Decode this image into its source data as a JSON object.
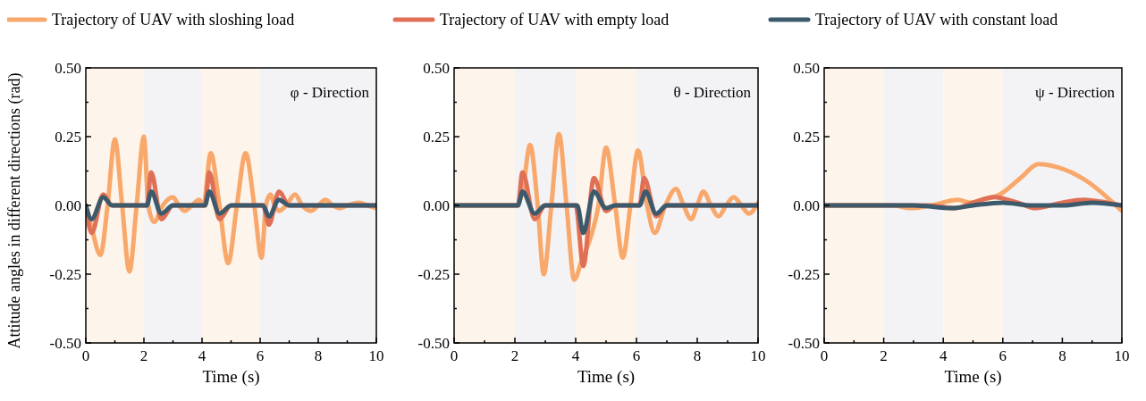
{
  "chart_data": [
    {
      "type": "line",
      "xlabel": "Time (s)",
      "ylabel": "Attitude angles in different directions (rad)",
      "annotations": [
        "φ - Direction"
      ],
      "legend": "top",
      "xlim": [
        0,
        10
      ],
      "xticks": [
        0,
        2,
        4,
        6,
        8,
        10
      ],
      "ylim": [
        -0.5,
        0.5
      ],
      "yticks": [
        {
          "value": -0.5,
          "label": "-0.50"
        },
        {
          "value": -0.25,
          "label": "-0.25"
        },
        {
          "value": 0,
          "label": "0.00"
        },
        {
          "value": 0.25,
          "label": "0.25"
        },
        {
          "value": 0.5,
          "label": "0.50"
        }
      ],
      "bands": [
        {
          "axis": "x",
          "from": 0,
          "to": 2,
          "color": "#fdf5eb"
        },
        {
          "axis": "x",
          "from": 2,
          "to": 4,
          "color": "#f3f3f6"
        },
        {
          "axis": "x",
          "from": 4,
          "to": 6,
          "color": "#fdf5eb"
        },
        {
          "axis": "x",
          "from": 6,
          "to": 10,
          "color": "#f3f3f6"
        }
      ],
      "series": [
        {
          "name": "Trajectory of UAV with sloshing load",
          "color": "#f9a86c",
          "x": [
            0,
            0.2,
            0.5,
            0.75,
            1.0,
            1.25,
            1.5,
            1.75,
            2.0,
            2.15,
            2.35,
            2.65,
            3.0,
            3.2,
            3.4,
            3.65,
            3.9,
            4.05,
            4.3,
            4.6,
            4.9,
            5.2,
            5.5,
            5.8,
            6.05,
            6.2,
            6.35,
            6.5,
            6.65,
            6.9,
            7.2,
            7.45,
            7.75,
            8.0,
            8.25,
            8.5,
            8.75,
            9.0,
            9.4,
            9.7,
            10
          ],
          "values": [
            0,
            -0.08,
            -0.18,
            0,
            0.24,
            0,
            -0.24,
            0,
            0.25,
            0,
            -0.06,
            0,
            0.03,
            0,
            -0.02,
            0,
            0.02,
            0,
            0.19,
            0,
            -0.21,
            0,
            0.19,
            0,
            -0.19,
            0,
            0.04,
            0,
            -0.02,
            0,
            0.04,
            0,
            -0.02,
            0,
            0.02,
            0,
            -0.01,
            0,
            0.01,
            0,
            -0.01
          ]
        },
        {
          "name": "Trajectory of UAV with empty load",
          "color": "#e07055",
          "x": [
            0,
            0.2,
            0.6,
            0.9,
            2.1,
            2.25,
            2.6,
            3.0,
            4.1,
            4.25,
            4.6,
            5.0,
            6.1,
            6.3,
            6.65,
            7.0,
            10
          ],
          "values": [
            0,
            -0.1,
            0.04,
            0,
            0,
            0.12,
            -0.05,
            0,
            0,
            0.12,
            -0.05,
            0,
            0,
            -0.07,
            0.05,
            0,
            0
          ]
        },
        {
          "name": "Trajectory of UAV with constant load",
          "color": "#3d5a6c",
          "x": [
            0,
            0.2,
            0.6,
            0.9,
            2.1,
            2.25,
            2.6,
            3.0,
            4.1,
            4.25,
            4.6,
            5.0,
            6.1,
            6.3,
            6.65,
            7.0,
            10
          ],
          "values": [
            0,
            -0.05,
            0.03,
            0,
            0,
            0.05,
            -0.03,
            0,
            0,
            0.05,
            -0.03,
            0,
            0,
            -0.04,
            0.02,
            0,
            0
          ]
        }
      ]
    },
    {
      "type": "line",
      "xlabel": "Time (s)",
      "annotations": [
        "θ  - Direction"
      ],
      "xlim": [
        0,
        10
      ],
      "xticks": [
        0,
        2,
        4,
        6,
        8,
        10
      ],
      "ylim": [
        -0.5,
        0.5
      ],
      "yticks": [
        {
          "value": -0.5,
          "label": "-0.50"
        },
        {
          "value": -0.25,
          "label": "-0.25"
        },
        {
          "value": 0,
          "label": "0.00"
        },
        {
          "value": 0.25,
          "label": "0.25"
        },
        {
          "value": 0.5,
          "label": "0.50"
        }
      ],
      "bands": [
        {
          "axis": "x",
          "from": 0,
          "to": 2,
          "color": "#fdf5eb"
        },
        {
          "axis": "x",
          "from": 2,
          "to": 4,
          "color": "#f3f3f6"
        },
        {
          "axis": "x",
          "from": 4,
          "to": 6,
          "color": "#fdf5eb"
        },
        {
          "axis": "x",
          "from": 6,
          "to": 10,
          "color": "#f3f3f6"
        }
      ],
      "series": [
        {
          "color": "#f9a86c",
          "x": [
            0,
            2.05,
            2.25,
            2.5,
            2.75,
            2.95,
            3.2,
            3.45,
            3.7,
            3.95,
            4.2,
            4.45,
            4.75,
            5.0,
            5.3,
            5.55,
            5.8,
            6.05,
            6.35,
            6.6,
            6.95,
            7.3,
            7.55,
            7.8,
            8.0,
            8.2,
            8.45,
            8.7,
            8.95,
            9.2,
            9.45,
            9.7,
            10
          ],
          "values": [
            0,
            0,
            0.05,
            0.22,
            0,
            -0.25,
            0,
            0.26,
            0,
            -0.27,
            -0.2,
            -0.13,
            0,
            0.21,
            0,
            -0.19,
            0,
            0.2,
            0,
            -0.1,
            0,
            0.06,
            0,
            -0.05,
            0,
            0.05,
            0,
            -0.04,
            0,
            0.03,
            0,
            -0.03,
            0.01
          ]
        },
        {
          "color": "#e07055",
          "x": [
            0,
            2.1,
            2.25,
            2.65,
            3.0,
            4.0,
            4.25,
            4.6,
            5.0,
            5.3,
            6.1,
            6.25,
            6.65,
            7.0,
            10
          ],
          "values": [
            0,
            0,
            0.12,
            -0.05,
            0,
            0,
            -0.22,
            0.1,
            -0.02,
            0,
            0,
            0.1,
            -0.04,
            0,
            0
          ]
        },
        {
          "color": "#3d5a6c",
          "x": [
            0,
            2.1,
            2.25,
            2.65,
            3.0,
            4.05,
            4.25,
            4.6,
            5.0,
            5.3,
            6.1,
            6.3,
            6.65,
            7.0,
            10
          ],
          "values": [
            0,
            0,
            0.05,
            -0.03,
            0,
            0,
            -0.1,
            0.05,
            -0.01,
            0,
            0,
            0.05,
            -0.03,
            0,
            0
          ]
        }
      ]
    },
    {
      "type": "line",
      "xlabel": "Time (s)",
      "annotations": [
        "ψ - Direction"
      ],
      "xlim": [
        0,
        10
      ],
      "xticks": [
        0,
        2,
        4,
        6,
        8,
        10
      ],
      "ylim": [
        -0.5,
        0.5
      ],
      "yticks": [
        {
          "value": -0.5,
          "label": "-0.50"
        },
        {
          "value": -0.25,
          "label": "-0.25"
        },
        {
          "value": 0,
          "label": "0.00"
        },
        {
          "value": 0.25,
          "label": "0.25"
        },
        {
          "value": 0.5,
          "label": "0.50"
        }
      ],
      "bands": [
        {
          "axis": "x",
          "from": 0,
          "to": 2,
          "color": "#fdf5eb"
        },
        {
          "axis": "x",
          "from": 2,
          "to": 4,
          "color": "#f3f3f6"
        },
        {
          "axis": "x",
          "from": 4,
          "to": 6,
          "color": "#fdf5eb"
        },
        {
          "axis": "x",
          "from": 6,
          "to": 10,
          "color": "#f3f3f6"
        }
      ],
      "series": [
        {
          "color": "#f9a86c",
          "x": [
            0,
            2.3,
            2.9,
            3.6,
            4.5,
            4.9,
            5.3,
            5.9,
            6.6,
            7.2,
            7.8,
            8.8,
            9.6,
            9.8,
            10
          ],
          "values": [
            0,
            0,
            -0.01,
            0,
            0.02,
            0.01,
            0.02,
            0.04,
            0.1,
            0.15,
            0.14,
            0.09,
            0.02,
            0,
            -0.02
          ]
        },
        {
          "color": "#e07055",
          "x": [
            0,
            2.2,
            3.5,
            4.4,
            5.0,
            5.7,
            6.5,
            7.1,
            8.0,
            8.7,
            9.5,
            10
          ],
          "values": [
            0,
            0,
            0,
            -0.01,
            0.01,
            0.03,
            0.01,
            -0.01,
            0.01,
            0.02,
            0.01,
            0
          ]
        },
        {
          "color": "#3d5a6c",
          "x": [
            0,
            3.0,
            4.3,
            5.0,
            6.0,
            7.0,
            8.0,
            9.0,
            10
          ],
          "values": [
            0,
            0,
            -0.01,
            0,
            0.01,
            0,
            0,
            0.01,
            0
          ]
        }
      ]
    }
  ]
}
